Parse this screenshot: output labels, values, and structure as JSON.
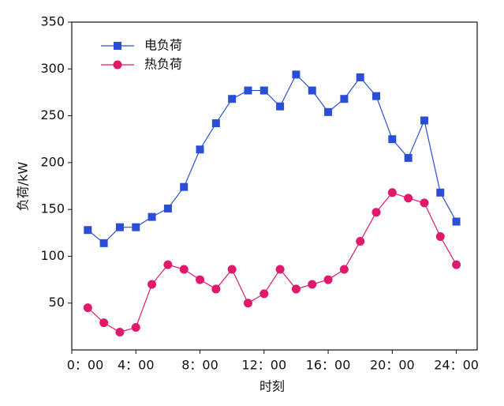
{
  "chart_data": {
    "type": "line",
    "x_label": "时刻",
    "y_label": "负荷/kW",
    "x": [
      1,
      2,
      3,
      4,
      5,
      6,
      7,
      8,
      9,
      10,
      11,
      12,
      13,
      14,
      15,
      16,
      17,
      18,
      19,
      20,
      21,
      22,
      23,
      24
    ],
    "xlim": [
      0,
      25.3
    ],
    "xticks": [
      {
        "value": 0,
        "label": "0：00"
      },
      {
        "value": 4,
        "label": "4：00"
      },
      {
        "value": 8,
        "label": "8：00"
      },
      {
        "value": 12,
        "label": "12：00"
      },
      {
        "value": 16,
        "label": "16：00"
      },
      {
        "value": 20,
        "label": "20：00"
      },
      {
        "value": 24,
        "label": "24：00"
      }
    ],
    "ylim": [
      0,
      350
    ],
    "yticks": [
      50,
      100,
      150,
      200,
      250,
      300,
      350
    ],
    "legend": "upper left",
    "series": [
      {
        "name": "电负荷",
        "color": "#2a4fd6",
        "marker": "square",
        "values": [
          128,
          114,
          131,
          131,
          142,
          151,
          174,
          214,
          242,
          268,
          277,
          277,
          260,
          294,
          277,
          254,
          268,
          291,
          271,
          225,
          205,
          245,
          168,
          137
        ]
      },
      {
        "name": "热负荷",
        "color": "#e0196a",
        "marker": "circle",
        "values": [
          45,
          29,
          19,
          24,
          70,
          91,
          86,
          75,
          65,
          86,
          50,
          60,
          86,
          65,
          70,
          75,
          86,
          116,
          147,
          168,
          162,
          157,
          121,
          91
        ]
      }
    ]
  }
}
